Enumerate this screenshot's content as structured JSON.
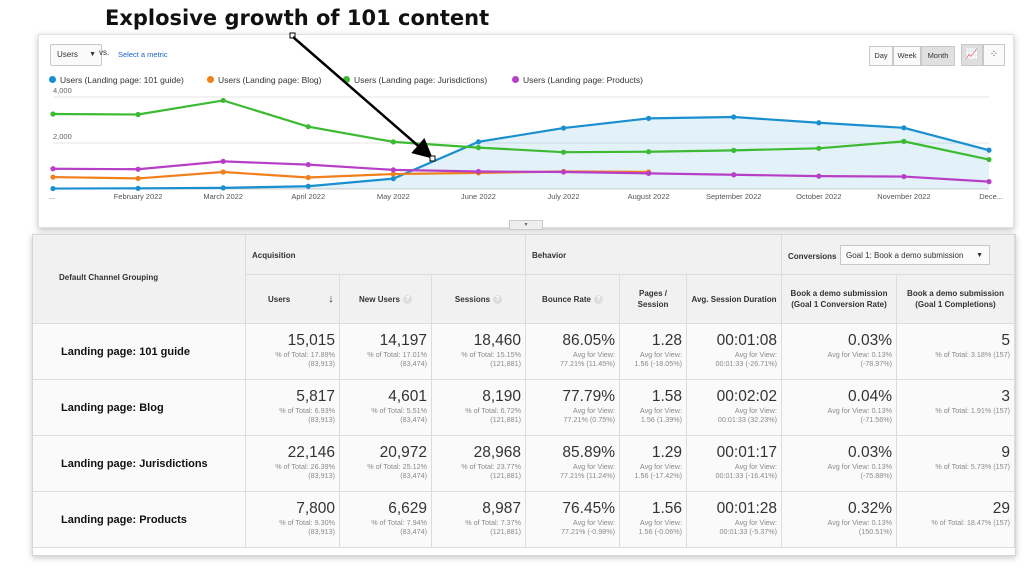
{
  "headline": "Explosive growth of 101 content",
  "controls": {
    "metric": "Users",
    "vs_label": "vs.",
    "select_metric": "Select a metric",
    "granularity": [
      "Day",
      "Week",
      "Month"
    ],
    "granularity_active": "Month"
  },
  "chart_data": {
    "type": "line",
    "x": [
      "...",
      "February 2022",
      "March 2022",
      "April 2022",
      "May 2022",
      "June 2022",
      "July 2022",
      "August 2022",
      "September 2022",
      "October 2022",
      "November 2022",
      "Dece..."
    ],
    "ylim": [
      0,
      4000
    ],
    "yticks": [
      "4,000",
      "2,000"
    ],
    "grid": true,
    "legend": "top-left",
    "series": [
      {
        "name": "Users (Landing page: 101 guide)",
        "color": "#1a8fd0",
        "area": true,
        "values": [
          20,
          30,
          50,
          120,
          450,
          2050,
          2650,
          3070,
          3130,
          2880,
          2660,
          1690
        ]
      },
      {
        "name": "Users (Landing page: Blog)",
        "color": "#f07f1c",
        "values": [
          520,
          460,
          740,
          500,
          650,
          700,
          760,
          740,
          null,
          null,
          null,
          null
        ]
      },
      {
        "name": "Users (Landing page: Jurisdictions)",
        "color": "#3cba32",
        "values": [
          3260,
          3240,
          3850,
          2710,
          2050,
          1800,
          1600,
          1620,
          1680,
          1770,
          2070,
          1280
        ]
      },
      {
        "name": "Users (Landing page: Products)",
        "color": "#b73fc7",
        "values": [
          880,
          860,
          1200,
          1060,
          830,
          760,
          740,
          680,
          620,
          560,
          540,
          320
        ]
      }
    ]
  },
  "table": {
    "dimension_header": "Default Channel Grouping",
    "groups": {
      "acquisition": "Acquisition",
      "behavior": "Behavior",
      "conversions": "Conversions"
    },
    "goal_select": "Goal 1: Book a demo submission",
    "columns": [
      "Users",
      "New Users",
      "Sessions",
      "Bounce Rate",
      "Pages / Session",
      "Avg. Session Duration",
      "Book a demo submission (Goal 1 Conversion Rate)",
      "Book a demo submission (Goal 1 Completions)"
    ],
    "rows": [
      {
        "label": "Landing page: 101 guide",
        "cells": [
          {
            "v": "15,015",
            "s1": "% of Total: 17.89%",
            "s2": "(83,913)"
          },
          {
            "v": "14,197",
            "s1": "% of Total: 17.01%",
            "s2": "(83,474)"
          },
          {
            "v": "18,460",
            "s1": "% of Total: 15.15%",
            "s2": "(121,881)"
          },
          {
            "v": "86.05%",
            "s1": "Avg for View:",
            "s2": "77.21% (11.45%)"
          },
          {
            "v": "1.28",
            "s1": "Avg for View:",
            "s2": "1.56 (-18.05%)"
          },
          {
            "v": "00:01:08",
            "s1": "Avg for View:",
            "s2": "00:01:33 (-26.71%)"
          },
          {
            "v": "0.03%",
            "s1": "Avg for View: 0.13%",
            "s2": "(-78.97%)"
          },
          {
            "v": "5",
            "s1": "% of Total: 3.18% (157)",
            "s2": ""
          }
        ]
      },
      {
        "label": "Landing page: Blog",
        "cells": [
          {
            "v": "5,817",
            "s1": "% of Total: 6.93%",
            "s2": "(83,913)"
          },
          {
            "v": "4,601",
            "s1": "% of Total: 5.51%",
            "s2": "(83,474)"
          },
          {
            "v": "8,190",
            "s1": "% of Total: 6.72%",
            "s2": "(121,881)"
          },
          {
            "v": "77.79%",
            "s1": "Avg for View:",
            "s2": "77.21% (0.75%)"
          },
          {
            "v": "1.58",
            "s1": "Avg for View:",
            "s2": "1.56 (1.39%)"
          },
          {
            "v": "00:02:02",
            "s1": "Avg for View:",
            "s2": "00:01:33 (32.23%)"
          },
          {
            "v": "0.04%",
            "s1": "Avg for View: 0.13%",
            "s2": "(-71.56%)"
          },
          {
            "v": "3",
            "s1": "% of Total: 1.91% (157)",
            "s2": ""
          }
        ]
      },
      {
        "label": "Landing page: Jurisdictions",
        "cells": [
          {
            "v": "22,146",
            "s1": "% of Total: 26.39%",
            "s2": "(83,913)"
          },
          {
            "v": "20,972",
            "s1": "% of Total: 25.12%",
            "s2": "(83,474)"
          },
          {
            "v": "28,968",
            "s1": "% of Total: 23.77%",
            "s2": "(121,881)"
          },
          {
            "v": "85.89%",
            "s1": "Avg for View:",
            "s2": "77.21% (11.24%)"
          },
          {
            "v": "1.29",
            "s1": "Avg for View:",
            "s2": "1.56 (-17.42%)"
          },
          {
            "v": "00:01:17",
            "s1": "Avg for View:",
            "s2": "00:01:33 (-16.41%)"
          },
          {
            "v": "0.03%",
            "s1": "Avg for View: 0.13%",
            "s2": "(-75.88%)"
          },
          {
            "v": "9",
            "s1": "% of Total: 5.73% (157)",
            "s2": ""
          }
        ]
      },
      {
        "label": "Landing page: Products",
        "cells": [
          {
            "v": "7,800",
            "s1": "% of Total: 9.30%",
            "s2": "(83,913)"
          },
          {
            "v": "6,629",
            "s1": "% of Total: 7.94%",
            "s2": "(83,474)"
          },
          {
            "v": "8,987",
            "s1": "% of Total: 7.37%",
            "s2": "(121,881)"
          },
          {
            "v": "76.45%",
            "s1": "Avg for View:",
            "s2": "77.21% (-0.98%)"
          },
          {
            "v": "1.56",
            "s1": "Avg for View:",
            "s2": "1.56 (-0.06%)"
          },
          {
            "v": "00:01:28",
            "s1": "Avg for View:",
            "s2": "00:01:33 (-5.37%)"
          },
          {
            "v": "0.32%",
            "s1": "Avg for View: 0.13%",
            "s2": "(150.51%)"
          },
          {
            "v": "29",
            "s1": "% of Total: 18.47% (157)",
            "s2": ""
          }
        ]
      }
    ]
  }
}
